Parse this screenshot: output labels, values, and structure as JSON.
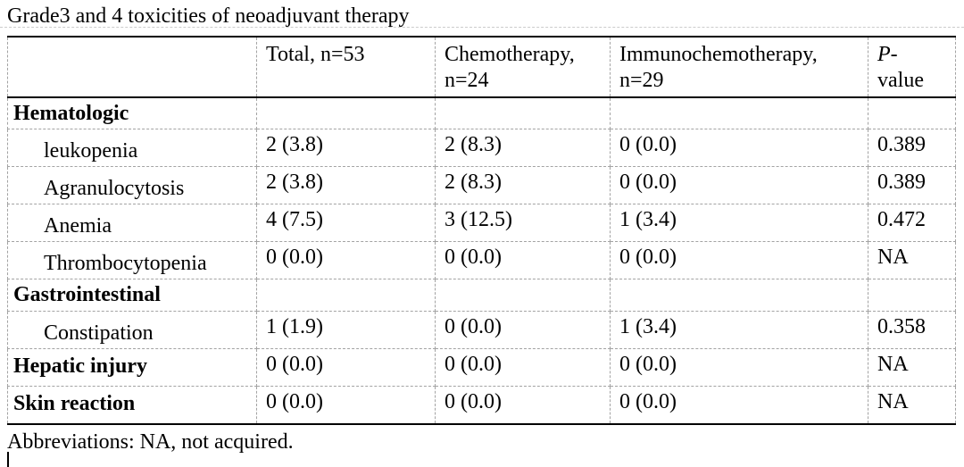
{
  "title": "Grade3 and 4 toxicities of neoadjuvant therapy",
  "table": {
    "header": {
      "row_label": "",
      "total": {
        "line1": "Total, n=53",
        "line2": ""
      },
      "chemotherapy": {
        "line1": "Chemotherapy,",
        "line2": "n=24"
      },
      "immunochemotherapy": {
        "line1": "Immunochemotherapy,",
        "line2": "n=29"
      },
      "p_value": {
        "line1": "P-",
        "line2": "value"
      }
    },
    "rows": [
      {
        "label": "Hematologic",
        "values": [
          "",
          "",
          "",
          ""
        ]
      },
      {
        "label": "leukopenia",
        "values": [
          "2 (3.8)",
          "2 (8.3)",
          "0 (0.0)",
          "0.389"
        ]
      },
      {
        "label": "Agranulocytosis",
        "values": [
          "2 (3.8)",
          "2 (8.3)",
          "0 (0.0)",
          "0.389"
        ]
      },
      {
        "label": "Anemia",
        "values": [
          "4 (7.5)",
          "3 (12.5)",
          "1 (3.4)",
          "0.472"
        ]
      },
      {
        "label": "Thrombocytopenia",
        "values": [
          "0 (0.0)",
          "0 (0.0)",
          "0 (0.0)",
          "NA"
        ]
      },
      {
        "label": "Gastrointestinal",
        "values": [
          "",
          "",
          "",
          ""
        ]
      },
      {
        "label": "Constipation",
        "values": [
          "1 (1.9)",
          "0 (0.0)",
          "1 (3.4)",
          "0.358"
        ]
      },
      {
        "label": "Hepatic injury",
        "values": [
          "0 (0.0)",
          "0 (0.0)",
          "0 (0.0)",
          "NA"
        ]
      },
      {
        "label": "Skin reaction",
        "values": [
          "0 (0.0)",
          "0 (0.0)",
          "0 (0.0)",
          "NA"
        ]
      }
    ]
  },
  "footnote": "Abbreviations: NA, not acquired.",
  "colors": {
    "background": "#ffffff",
    "text": "#000000",
    "solid_border": "#000000",
    "dashed_border": "#a3a3a3"
  }
}
